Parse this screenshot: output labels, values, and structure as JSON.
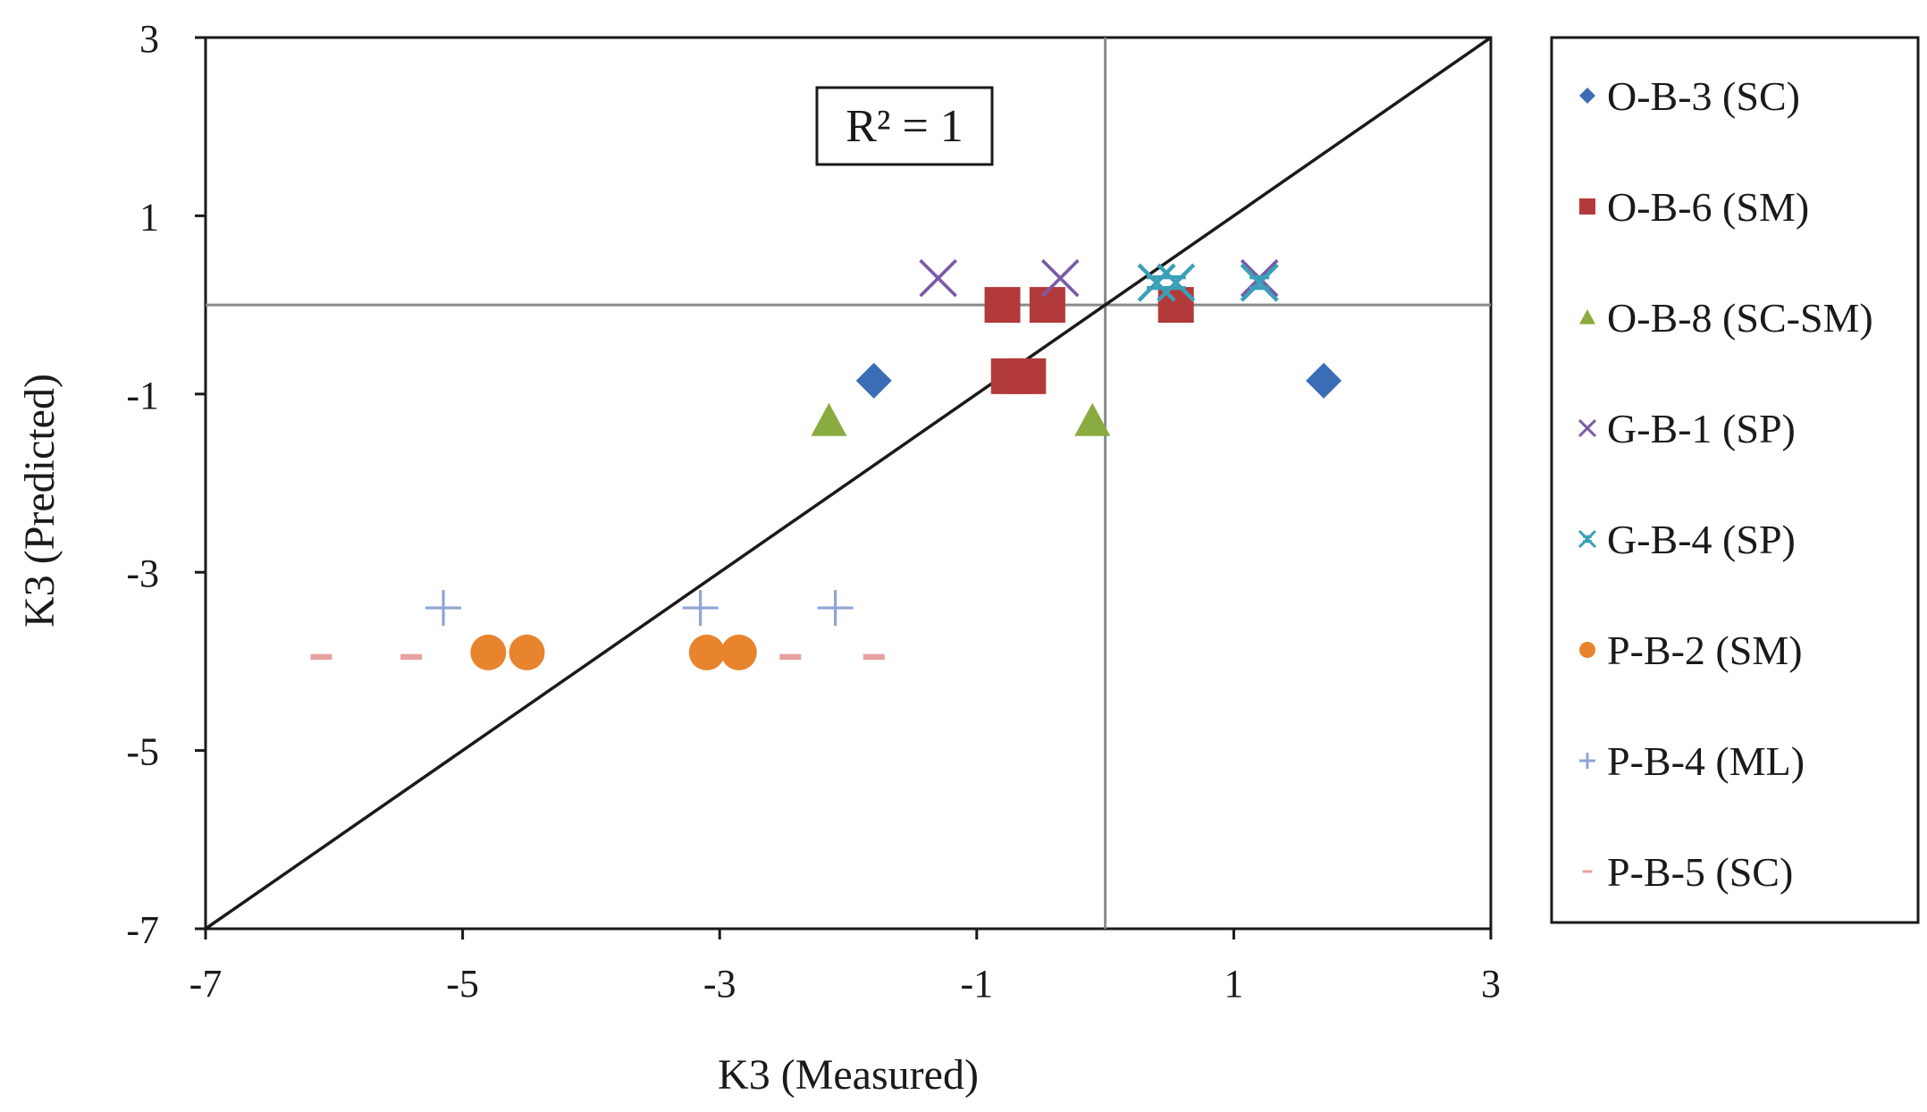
{
  "chart_data": {
    "type": "scatter",
    "title": "",
    "xlabel": "K3 (Measured)",
    "ylabel": "K3 (Predicted)",
    "xlim": [
      -7,
      3
    ],
    "ylim": [
      -7,
      3
    ],
    "xticks": [
      "-7",
      "-5",
      "-3",
      "-1",
      "1",
      "3"
    ],
    "yticks": [
      "-7",
      "-5",
      "-3",
      "-1",
      "1",
      "3"
    ],
    "xtick_values": [
      -7,
      -5,
      -3,
      -1,
      1,
      3
    ],
    "ytick_values": [
      -7,
      -5,
      -3,
      -1,
      1,
      3
    ],
    "reference_lines": {
      "x": 0,
      "y": 0,
      "identity": true
    },
    "annotation": "R² = 1",
    "legend_position": "right",
    "series": [
      {
        "name": "O-B-3 (SC)",
        "marker": "diamond",
        "color": "#3a6db5",
        "points": [
          [
            -1.8,
            -0.85
          ],
          [
            1.7,
            -0.85
          ]
        ]
      },
      {
        "name": "O-B-6 (SM)",
        "marker": "square",
        "color": "#b33a3a",
        "points": [
          [
            -0.8,
            0.0
          ],
          [
            -0.45,
            0.0
          ],
          [
            0.55,
            0.0
          ],
          [
            -0.75,
            -0.8
          ],
          [
            -0.6,
            -0.8
          ]
        ]
      },
      {
        "name": "O-B-8 (SC-SM)",
        "marker": "triangle",
        "color": "#8aab3f",
        "points": [
          [
            -2.15,
            -1.3
          ],
          [
            -0.1,
            -1.3
          ]
        ]
      },
      {
        "name": "G-B-1 (SP)",
        "marker": "x",
        "color": "#7a5aa6",
        "points": [
          [
            -1.3,
            0.3
          ],
          [
            -0.35,
            0.3
          ],
          [
            1.2,
            0.3
          ]
        ]
      },
      {
        "name": "G-B-4 (SP)",
        "marker": "star",
        "color": "#3aa0b8",
        "points": [
          [
            0.4,
            0.25
          ],
          [
            0.55,
            0.25
          ],
          [
            1.2,
            0.25
          ]
        ]
      },
      {
        "name": "P-B-2 (SM)",
        "marker": "circle",
        "color": "#e8832e",
        "points": [
          [
            -4.8,
            -3.9
          ],
          [
            -4.5,
            -3.9
          ],
          [
            -3.1,
            -3.9
          ],
          [
            -2.85,
            -3.9
          ]
        ]
      },
      {
        "name": "P-B-4 (ML)",
        "marker": "plus",
        "color": "#8ea6d6",
        "points": [
          [
            -5.15,
            -3.4
          ],
          [
            -3.15,
            -3.4
          ],
          [
            -2.1,
            -3.4
          ]
        ]
      },
      {
        "name": "P-B-5 (SC)",
        "marker": "dash",
        "color": "#e8a0a0",
        "points": [
          [
            -6.1,
            -3.95
          ],
          [
            -5.4,
            -3.95
          ],
          [
            -2.45,
            -3.95
          ],
          [
            -1.8,
            -3.95
          ]
        ]
      }
    ]
  }
}
